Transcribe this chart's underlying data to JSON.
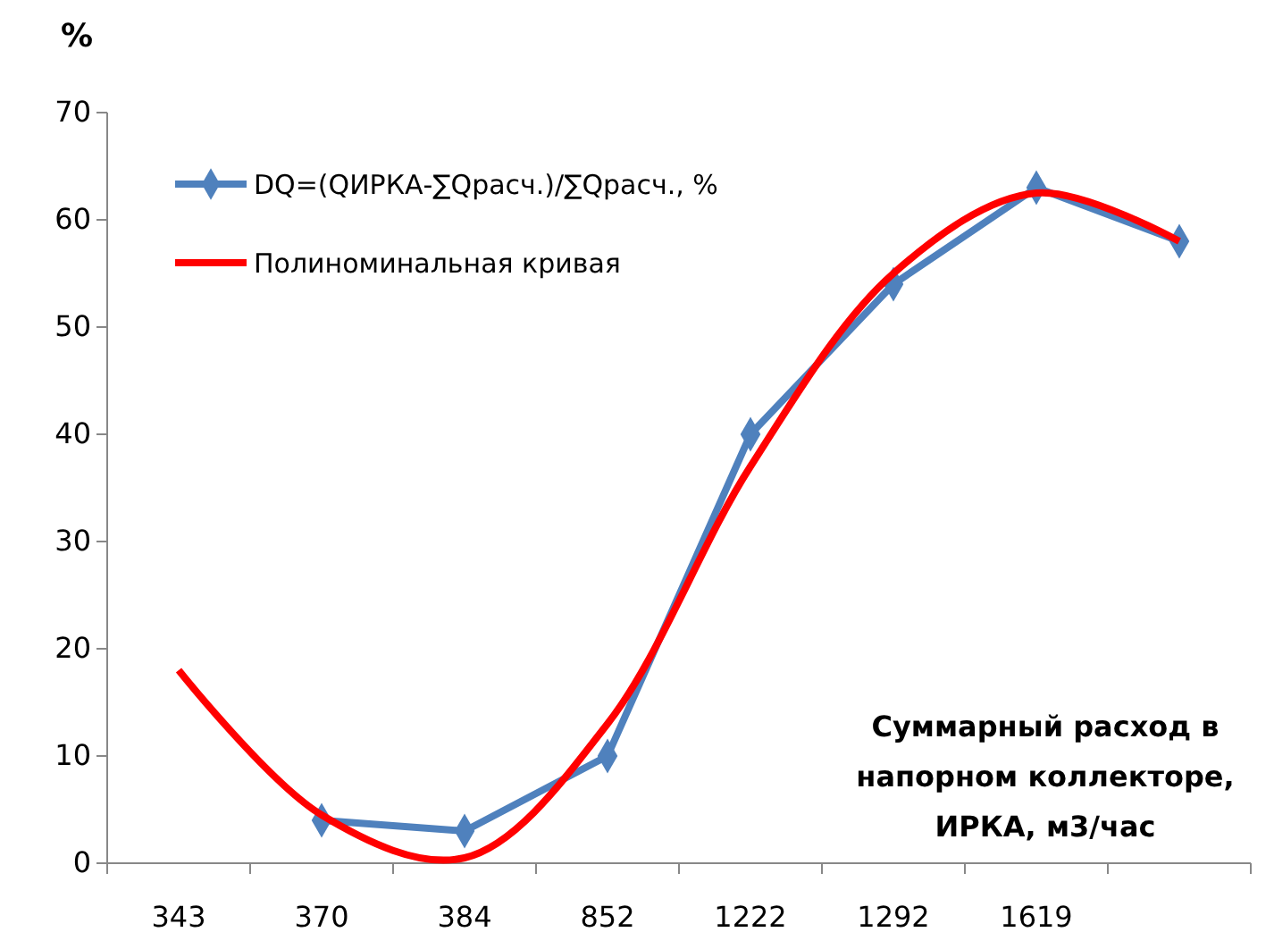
{
  "chart_data": {
    "type": "line",
    "ylabel": "%",
    "xlabel": "Суммарный расход в напорном коллекторе, ИРКА, м3/час",
    "categories": [
      "343",
      "370",
      "384",
      "852",
      "1222",
      "1292",
      "1619",
      null
    ],
    "series": [
      {
        "name": "DQ=(QИРКА-∑Qрасч.)/∑Qрасч., %",
        "color": "#4f81bd",
        "marker": "diamond",
        "values": [
          null,
          4,
          3,
          10,
          40,
          54,
          63,
          58
        ]
      },
      {
        "name": "Полиноминальная кривая",
        "color": "#ff0000",
        "marker": "none",
        "values": [
          18,
          4.5,
          0.5,
          13,
          37,
          55,
          62.5,
          58
        ]
      }
    ],
    "ylim": [
      0,
      70
    ],
    "yticks": [
      0,
      10,
      20,
      30,
      40,
      50,
      60,
      70
    ],
    "grid": false,
    "legend": "top left"
  }
}
